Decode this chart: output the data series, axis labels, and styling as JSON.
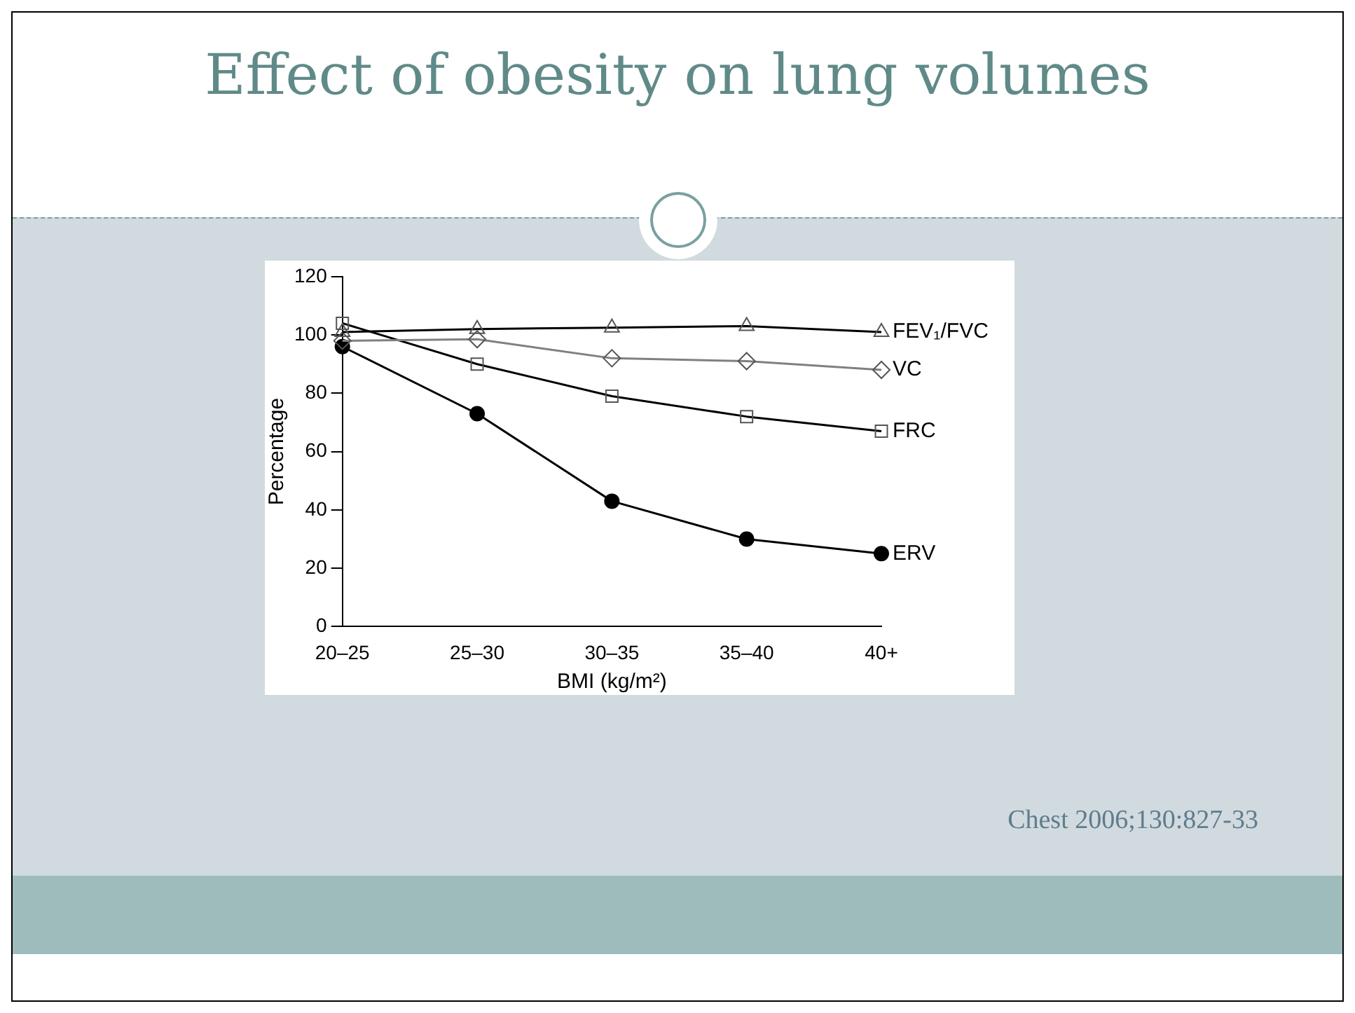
{
  "chart_data": {
    "type": "line",
    "title": "Effect of obesity on lung volumes",
    "xlabel": "BMI (kg/m²)",
    "ylabel": "Percentage",
    "categories": [
      "20–25",
      "25–30",
      "30–35",
      "35–40",
      "40+"
    ],
    "series": [
      {
        "name": "FEV₁/FVC",
        "color": "#000000",
        "marker": "triangle",
        "values": [
          101,
          102,
          102.5,
          103,
          101
        ]
      },
      {
        "name": "VC",
        "color": "#808080",
        "marker": "diamond",
        "values": [
          98,
          98.5,
          92,
          91,
          88
        ]
      },
      {
        "name": "FRC",
        "color": "#000000",
        "marker": "square",
        "values": [
          104,
          90,
          79,
          72,
          67
        ]
      },
      {
        "name": "ERV",
        "color": "#000000",
        "marker": "circle",
        "values": [
          96,
          73,
          43,
          30,
          25
        ]
      }
    ],
    "ylim": [
      0,
      120
    ],
    "yticks": [
      0,
      20,
      40,
      60,
      80,
      100,
      120
    ],
    "grid": false,
    "legend": false,
    "annotations": [
      "Chest 2006;130:827-33"
    ]
  }
}
